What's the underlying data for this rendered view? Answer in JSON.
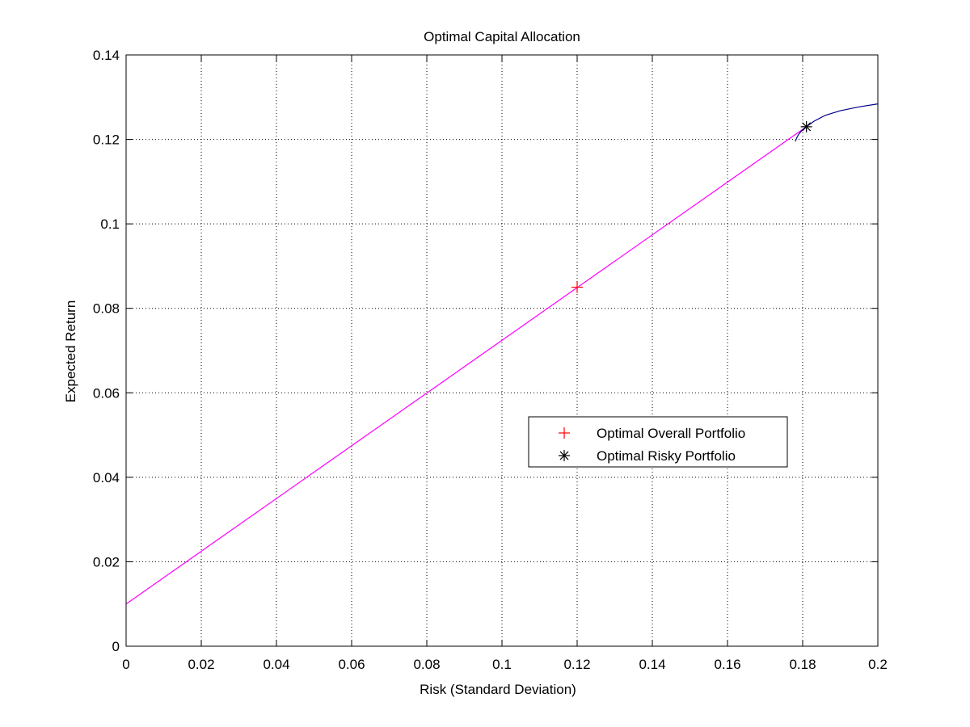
{
  "chart_data": {
    "type": "line",
    "title": "Optimal Capital Allocation",
    "xlabel": "Risk (Standard Deviation)",
    "ylabel": "Expected  Return",
    "xlim": [
      0,
      0.2
    ],
    "ylim": [
      0,
      0.14
    ],
    "xticks": [
      "0",
      "0.02",
      "0.04",
      "0.06",
      "0.08",
      "0.1",
      "0.12",
      "0.14",
      "0.16",
      "0.18",
      "0.2"
    ],
    "yticks": [
      "0",
      "0.02",
      "0.04",
      "0.06",
      "0.08",
      "0.1",
      "0.12",
      "0.14"
    ],
    "grid": true,
    "legend_position": "center-right",
    "lines": [
      {
        "color": "#ff00ff",
        "x": [
          0,
          0.181
        ],
        "y": [
          0.01,
          0.123
        ]
      },
      {
        "color": "#00008b",
        "x": [
          0.178,
          0.1785,
          0.179,
          0.18,
          0.181,
          0.183,
          0.186,
          0.19,
          0.195,
          0.2
        ],
        "y": [
          0.1195,
          0.1205,
          0.1213,
          0.1223,
          0.123,
          0.1243,
          0.1257,
          0.1268,
          0.1277,
          0.1284
        ]
      }
    ],
    "points": [
      {
        "name": "Optimal Overall Portfolio",
        "x": 0.12,
        "y": 0.085,
        "marker": "+",
        "color": "#ff0000"
      },
      {
        "name": "Optimal Risky Portfolio",
        "x": 0.181,
        "y": 0.123,
        "marker": "*",
        "color": "#000000"
      }
    ]
  }
}
